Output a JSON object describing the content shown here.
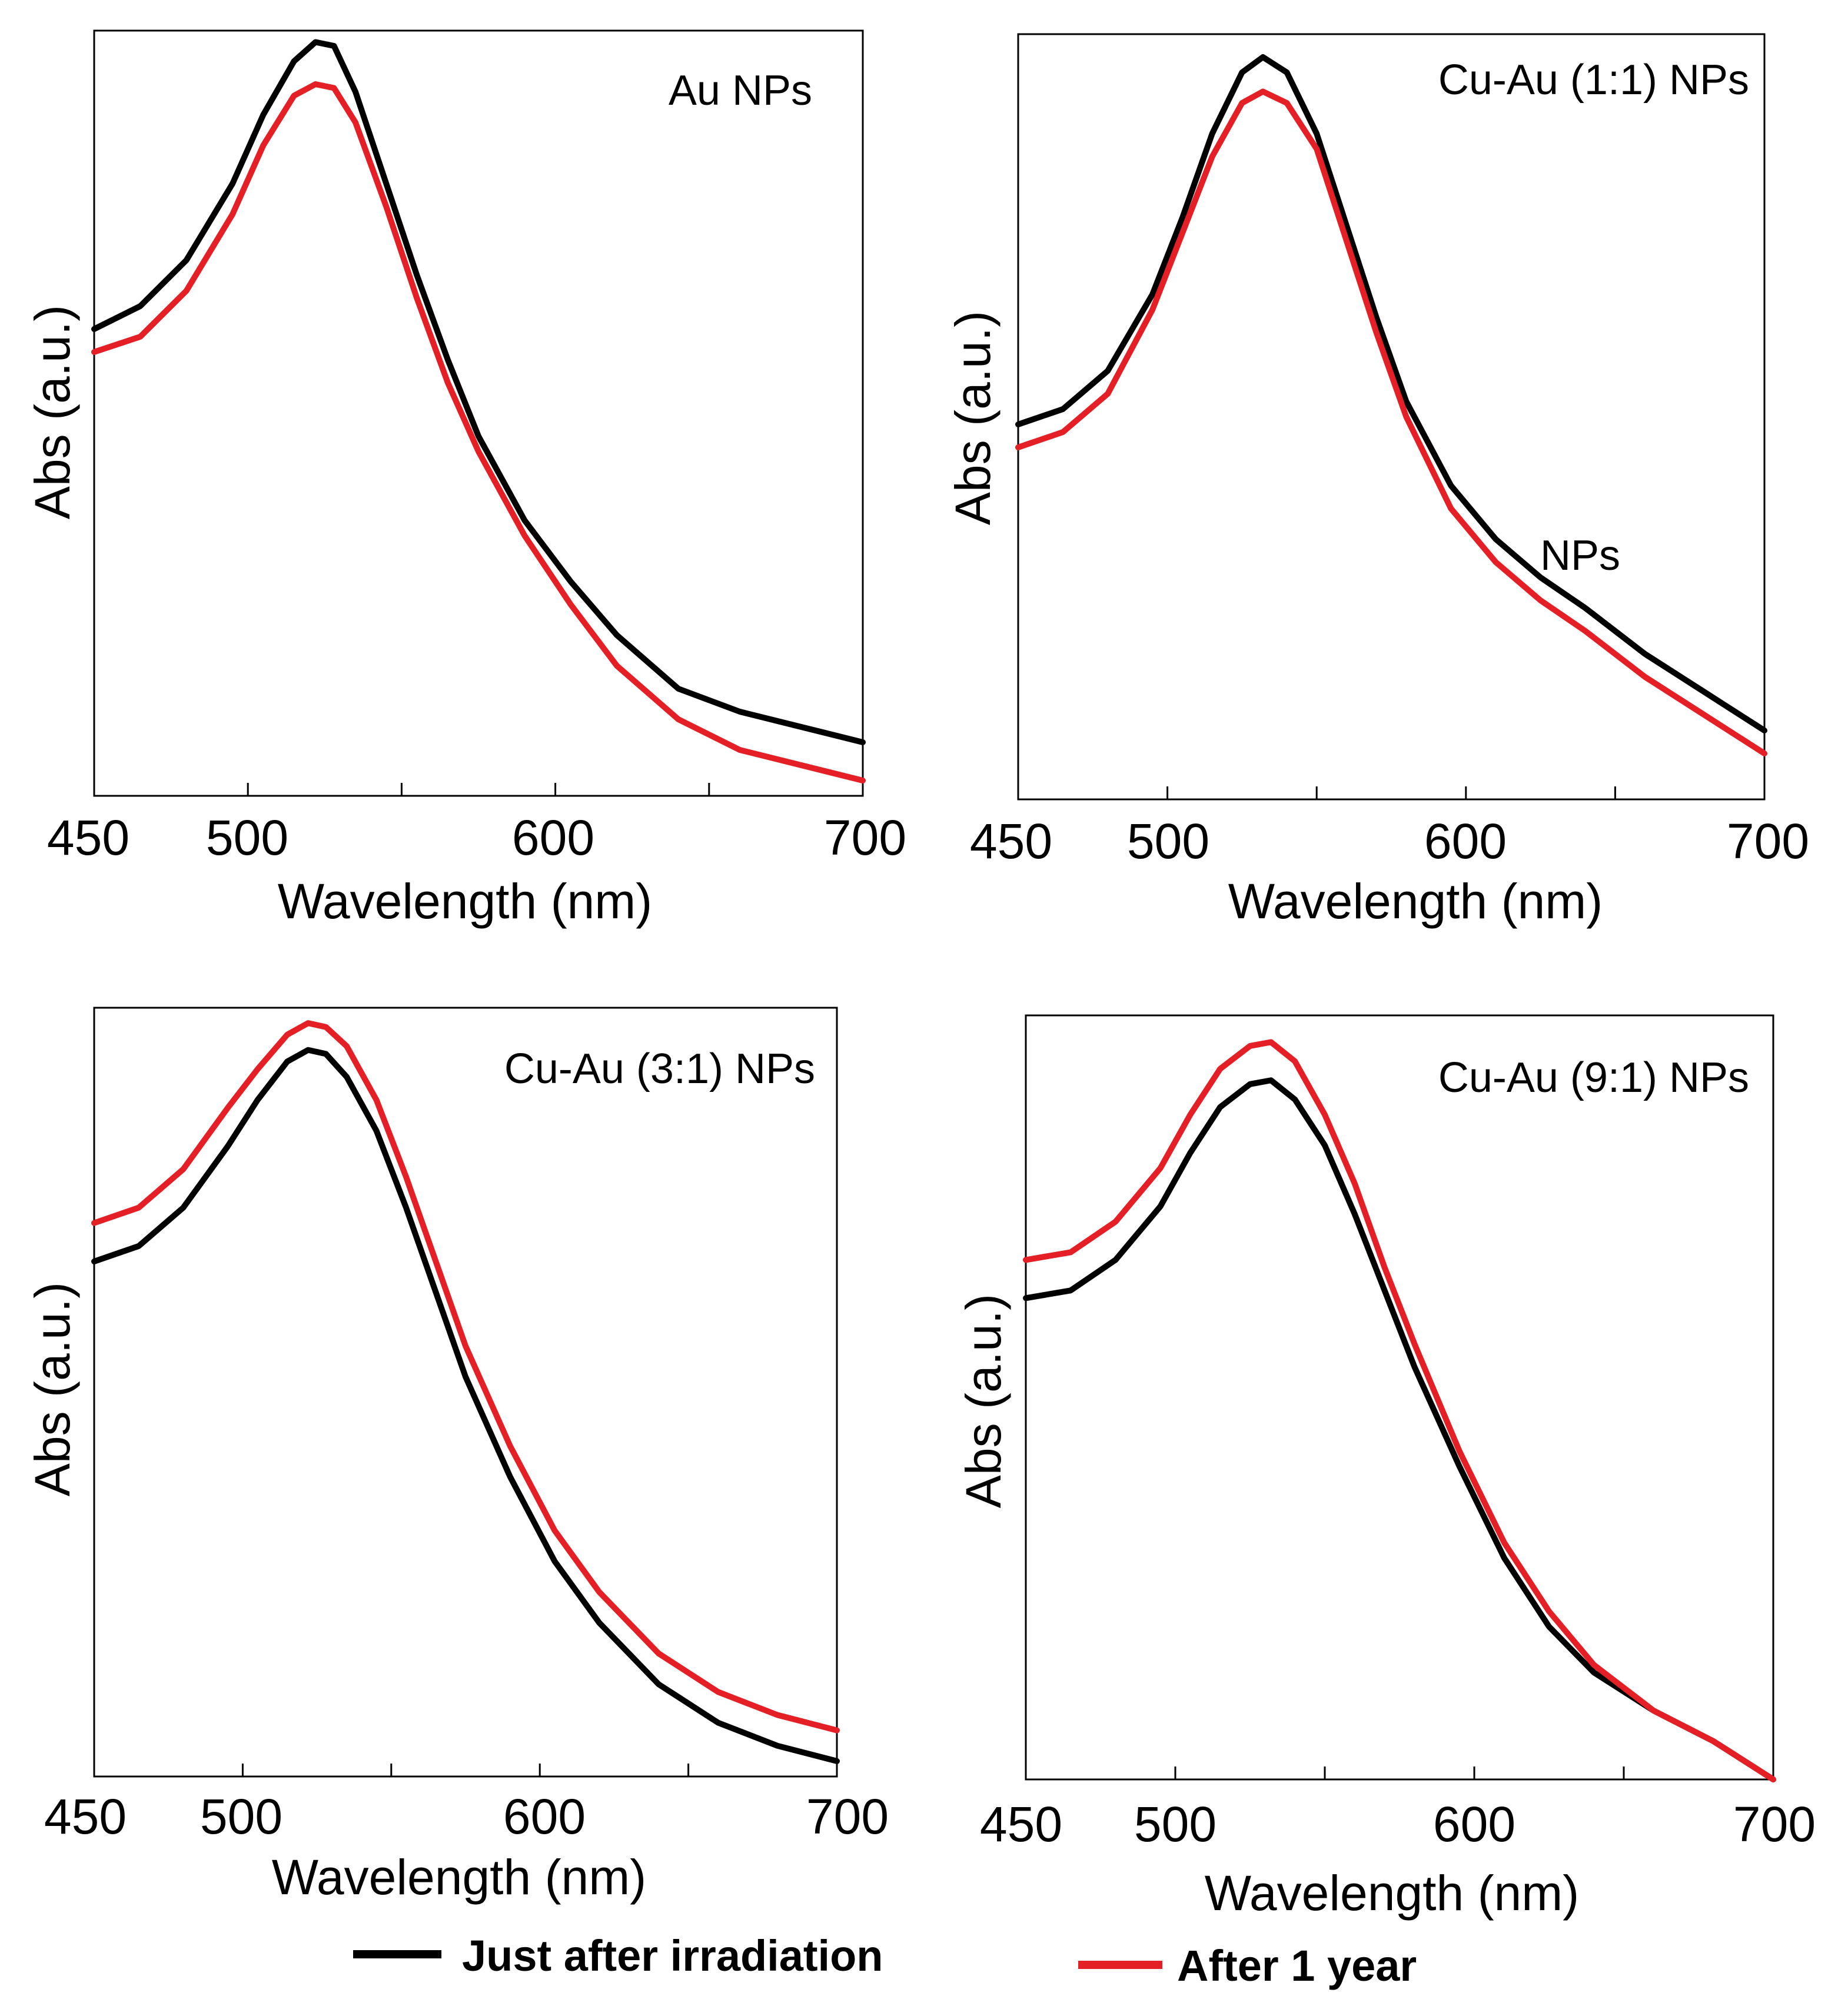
{
  "chart_data": [
    {
      "type": "line",
      "panel_label": "Au NPs",
      "xlabel": "Wavelength (nm)",
      "ylabel": "Abs (a.u.)",
      "xlim": [
        450,
        700
      ],
      "ylim": [
        0,
        1
      ],
      "x_tick_labels": [
        "450",
        "500",
        "600",
        "700"
      ],
      "series": [
        {
          "name": "Just after irradiation",
          "color": "#000000",
          "x": [
            450,
            465,
            480,
            495,
            505,
            515,
            522,
            528,
            535,
            545,
            555,
            565,
            575,
            590,
            605,
            620,
            640,
            660,
            680,
            700
          ],
          "y": [
            0.61,
            0.64,
            0.7,
            0.8,
            0.89,
            0.96,
            0.985,
            0.98,
            0.92,
            0.8,
            0.68,
            0.57,
            0.47,
            0.36,
            0.28,
            0.21,
            0.14,
            0.11,
            0.09,
            0.07
          ]
        },
        {
          "name": "After 1 year",
          "color": "#e41f26",
          "x": [
            450,
            465,
            480,
            495,
            505,
            515,
            522,
            528,
            535,
            545,
            555,
            565,
            575,
            590,
            605,
            620,
            640,
            660,
            680,
            700
          ],
          "y": [
            0.58,
            0.6,
            0.66,
            0.76,
            0.85,
            0.915,
            0.93,
            0.925,
            0.88,
            0.77,
            0.65,
            0.54,
            0.45,
            0.34,
            0.25,
            0.17,
            0.1,
            0.06,
            0.04,
            0.02
          ]
        }
      ]
    },
    {
      "type": "line",
      "panel_label": "Cu-Au (1:1) NPs",
      "annotation": "NPs",
      "xlabel": "Wavelength (nm)",
      "ylabel": "Abs (a.u.)",
      "xlim": [
        450,
        700
      ],
      "ylim": [
        0,
        1
      ],
      "x_tick_labels": [
        "450",
        "500",
        "600",
        "700"
      ],
      "series": [
        {
          "name": "Just after irradiation",
          "color": "#000000",
          "x": [
            450,
            465,
            480,
            495,
            505,
            515,
            525,
            532,
            540,
            550,
            560,
            570,
            580,
            595,
            610,
            625,
            640,
            660,
            680,
            700
          ],
          "y": [
            0.49,
            0.51,
            0.56,
            0.66,
            0.76,
            0.87,
            0.95,
            0.97,
            0.95,
            0.87,
            0.75,
            0.63,
            0.52,
            0.41,
            0.34,
            0.29,
            0.25,
            0.19,
            0.14,
            0.09
          ]
        },
        {
          "name": "After 1 year",
          "color": "#e41f26",
          "x": [
            450,
            465,
            480,
            495,
            505,
            515,
            525,
            532,
            540,
            550,
            560,
            570,
            580,
            595,
            610,
            625,
            640,
            660,
            680,
            700
          ],
          "y": [
            0.46,
            0.48,
            0.53,
            0.64,
            0.74,
            0.84,
            0.91,
            0.925,
            0.91,
            0.85,
            0.73,
            0.61,
            0.5,
            0.38,
            0.31,
            0.26,
            0.22,
            0.16,
            0.11,
            0.06
          ]
        }
      ]
    },
    {
      "type": "line",
      "panel_label": "Cu-Au (3:1) NPs",
      "xlabel": "Wavelength (nm)",
      "ylabel": "Abs (a.u.)",
      "xlim": [
        450,
        700
      ],
      "ylim": [
        0,
        1
      ],
      "x_tick_labels": [
        "450",
        "500",
        "600",
        "700"
      ],
      "series": [
        {
          "name": "Just after irradiation",
          "color": "#000000",
          "x": [
            450,
            465,
            480,
            495,
            505,
            515,
            522,
            528,
            535,
            545,
            555,
            565,
            575,
            590,
            605,
            620,
            640,
            660,
            680,
            700
          ],
          "y": [
            0.67,
            0.69,
            0.74,
            0.82,
            0.88,
            0.93,
            0.945,
            0.94,
            0.91,
            0.84,
            0.74,
            0.63,
            0.52,
            0.39,
            0.28,
            0.2,
            0.12,
            0.07,
            0.04,
            0.02
          ]
        },
        {
          "name": "After 1 year",
          "color": "#e41f26",
          "x": [
            450,
            465,
            480,
            495,
            505,
            515,
            522,
            528,
            535,
            545,
            555,
            565,
            575,
            590,
            605,
            620,
            640,
            660,
            680,
            700
          ],
          "y": [
            0.72,
            0.74,
            0.79,
            0.87,
            0.92,
            0.965,
            0.98,
            0.975,
            0.95,
            0.88,
            0.78,
            0.67,
            0.56,
            0.43,
            0.32,
            0.24,
            0.16,
            0.11,
            0.08,
            0.06
          ]
        }
      ]
    },
    {
      "type": "line",
      "panel_label": "Cu-Au (9:1) NPs",
      "xlabel": "Wavelength (nm)",
      "ylabel": "Abs (a.u.)",
      "xlim": [
        450,
        700
      ],
      "ylim": [
        0,
        1
      ],
      "x_tick_labels": [
        "450",
        "500",
        "600",
        "700"
      ],
      "series": [
        {
          "name": "Just after irradiation",
          "color": "#000000",
          "x": [
            450,
            465,
            480,
            495,
            505,
            515,
            525,
            532,
            540,
            550,
            560,
            570,
            580,
            595,
            610,
            625,
            640,
            660,
            680,
            700
          ],
          "y": [
            0.63,
            0.64,
            0.68,
            0.75,
            0.82,
            0.88,
            0.91,
            0.915,
            0.89,
            0.83,
            0.74,
            0.64,
            0.54,
            0.41,
            0.29,
            0.2,
            0.14,
            0.09,
            0.05,
            0.0
          ]
        },
        {
          "name": "After 1 year",
          "color": "#e41f26",
          "x": [
            450,
            465,
            480,
            495,
            505,
            515,
            525,
            532,
            540,
            550,
            560,
            570,
            580,
            595,
            610,
            625,
            640,
            660,
            680,
            700
          ],
          "y": [
            0.68,
            0.69,
            0.73,
            0.8,
            0.87,
            0.93,
            0.96,
            0.965,
            0.94,
            0.87,
            0.78,
            0.67,
            0.57,
            0.43,
            0.31,
            0.22,
            0.15,
            0.09,
            0.05,
            0.0
          ]
        }
      ]
    }
  ],
  "legend": [
    {
      "label": "Just after irradiation",
      "color": "#000000"
    },
    {
      "label": "After 1 year",
      "color": "#e41f26"
    }
  ]
}
